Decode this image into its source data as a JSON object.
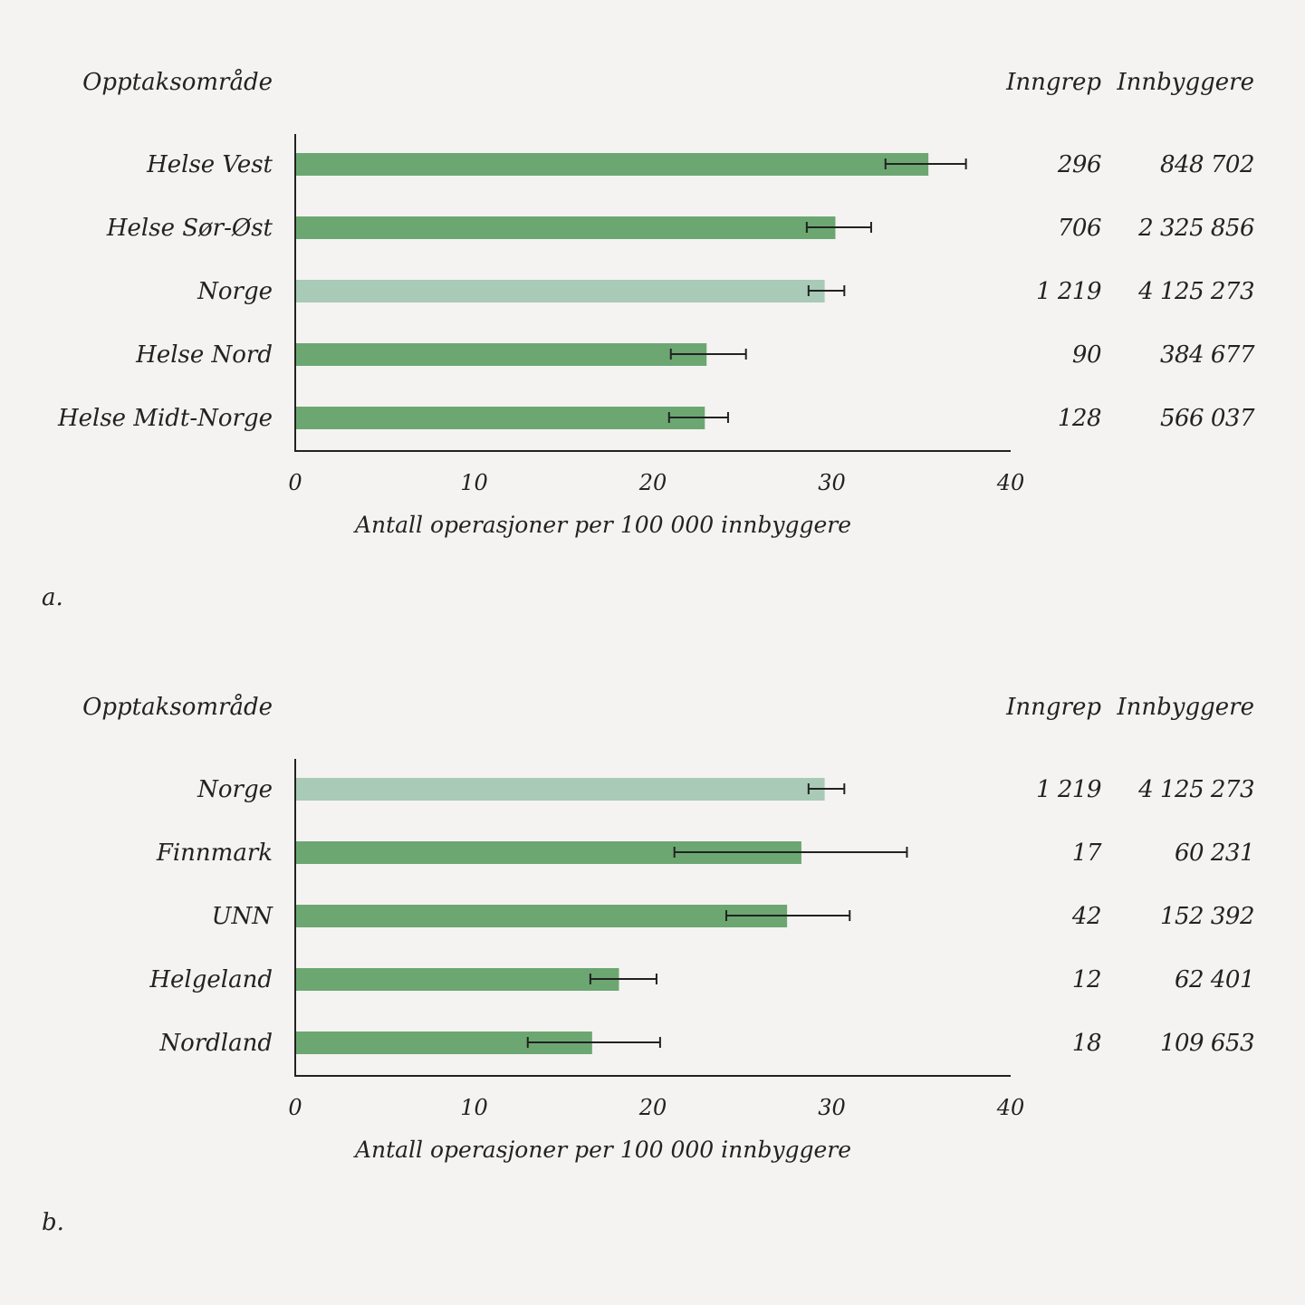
{
  "colors": {
    "bar": "#6ca772",
    "highlight": "#a8cab7",
    "background": "#f4f3f1",
    "error_bar": "#222222"
  },
  "chart_data": [
    {
      "type": "bar",
      "orientation": "horizontal",
      "panel_label": "a.",
      "category_header": "Opptaksområde",
      "column_headers": [
        "Inngrep",
        "Innbyggere"
      ],
      "xlabel": "Antall operasjoner per 100 000 innbyggere",
      "xlim": [
        0,
        40
      ],
      "xticks": [
        "0",
        "10",
        "20",
        "30",
        "40"
      ],
      "grid": false,
      "categories": [
        "Helse Vest",
        "Helse Sør-Øst",
        "Norge",
        "Helse Nord",
        "Helse Midt-Norge"
      ],
      "values": [
        35.4,
        30.2,
        29.6,
        23.0,
        22.9
      ],
      "error_low": [
        33.0,
        28.6,
        28.7,
        21.0,
        20.9
      ],
      "error_high": [
        37.5,
        32.2,
        30.7,
        25.2,
        24.2
      ],
      "highlighted": [
        false,
        false,
        true,
        false,
        false
      ],
      "inngrep": [
        "296",
        "706",
        "1 219",
        "90",
        "128"
      ],
      "innbyggere": [
        "848 702",
        "2 325 856",
        "4 125 273",
        "384 677",
        "566 037"
      ]
    },
    {
      "type": "bar",
      "orientation": "horizontal",
      "panel_label": "b.",
      "category_header": "Opptaksområde",
      "column_headers": [
        "Inngrep",
        "Innbyggere"
      ],
      "xlabel": "Antall operasjoner per 100 000 innbyggere",
      "xlim": [
        0,
        40
      ],
      "xticks": [
        "0",
        "10",
        "20",
        "30",
        "40"
      ],
      "grid": false,
      "categories": [
        "Norge",
        "Finnmark",
        "UNN",
        "Helgeland",
        "Nordland"
      ],
      "values": [
        29.6,
        28.3,
        27.5,
        18.1,
        16.6
      ],
      "error_low": [
        28.7,
        21.2,
        24.1,
        16.5,
        13.0
      ],
      "error_high": [
        30.7,
        34.2,
        31.0,
        20.2,
        20.4
      ],
      "highlighted": [
        true,
        false,
        false,
        false,
        false
      ],
      "inngrep": [
        "1 219",
        "17",
        "42",
        "12",
        "18"
      ],
      "innbyggere": [
        "4 125 273",
        "60 231",
        "152 392",
        "62 401",
        "109 653"
      ]
    }
  ]
}
